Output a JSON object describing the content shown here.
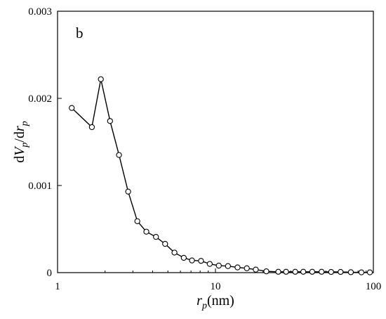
{
  "chart_data": {
    "type": "line",
    "annotation": "b",
    "xlabel_main": "r",
    "xlabel_sub": "p",
    "xlabel_unit": "(nm)",
    "ylabel_parts": [
      {
        "text": "d",
        "italic": false,
        "sub": false
      },
      {
        "text": "V",
        "italic": true,
        "sub": false
      },
      {
        "text": "p",
        "italic": true,
        "sub": true
      },
      {
        "text": "/d",
        "italic": false,
        "sub": false
      },
      {
        "text": "r",
        "italic": true,
        "sub": false
      },
      {
        "text": "p",
        "italic": true,
        "sub": true
      }
    ],
    "x_scale": "log",
    "xlim": [
      1,
      100
    ],
    "ylim": [
      0,
      0.003
    ],
    "xticks": [
      1,
      10,
      100
    ],
    "xtick_labels": [
      "1",
      "10",
      "100"
    ],
    "yticks": [
      0,
      0.001,
      0.002,
      0.003
    ],
    "ytick_labels": [
      "0",
      "0.001",
      "0.002",
      "0.003"
    ],
    "grid": false,
    "series": [
      {
        "marker": "open-circle",
        "x": [
          1.23,
          1.65,
          1.88,
          2.15,
          2.45,
          2.8,
          3.2,
          3.65,
          4.2,
          4.8,
          5.5,
          6.3,
          7.1,
          8.1,
          9.2,
          10.5,
          12.0,
          13.8,
          15.8,
          18.0,
          21.0,
          25.0,
          28.0,
          32.0,
          36.0,
          41.0,
          47.0,
          54.0,
          62.0,
          72.0,
          84.0,
          95.0
        ],
        "y": [
          0.00189,
          0.00167,
          0.00222,
          0.00174,
          0.00135,
          0.00093,
          0.00059,
          0.00047,
          0.00041,
          0.00033,
          0.00023,
          0.00017,
          0.00014,
          0.000135,
          0.0001,
          8e-05,
          7.5e-05,
          6e-05,
          5e-05,
          3.5e-05,
          1.5e-05,
          1e-05,
          1e-05,
          1e-05,
          1e-05,
          1e-05,
          1e-05,
          8e-06,
          8e-06,
          5e-06,
          3e-06,
          3e-06
        ]
      }
    ]
  }
}
